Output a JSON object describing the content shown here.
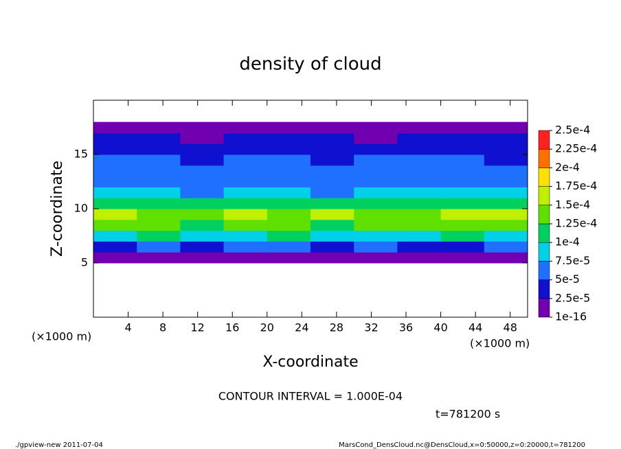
{
  "chart_data": {
    "type": "heatmap",
    "title": "density of cloud",
    "x_label": "X-coordinate",
    "y_label": "Z-coordinate",
    "x_unit": "(×1000 m)",
    "x_unit_right": "(×1000 m)",
    "contour_note": "CONTOUR INTERVAL = 1.000E-04",
    "time_note": "t=781200 s",
    "footer_left": "./gpview-new  2011-07-04",
    "footer_right": "MarsCond_DensCloud.nc@DensCloud,x=0:50000,z=0:20000,t=781200",
    "xlim": [
      0,
      50
    ],
    "ylim": [
      0,
      20
    ],
    "xticks": [
      4,
      8,
      12,
      16,
      20,
      24,
      28,
      32,
      36,
      40,
      44,
      48
    ],
    "yticks": [
      5,
      10,
      15
    ],
    "x_edges": [
      0,
      5,
      10,
      15,
      20,
      25,
      30,
      35,
      40,
      45,
      50
    ],
    "z_edges": [
      0,
      1,
      2,
      3,
      4,
      5,
      6,
      7,
      8,
      9,
      10,
      11,
      12,
      13,
      14,
      15,
      16,
      17,
      18,
      19,
      20
    ],
    "levels": [
      {
        "value": 1e-16,
        "label": "1e-16"
      },
      {
        "value": 2.5e-05,
        "label": "2.5e-5"
      },
      {
        "value": 5e-05,
        "label": "5e-5"
      },
      {
        "value": 7.5e-05,
        "label": "7.5e-5"
      },
      {
        "value": 0.0001,
        "label": "1e-4"
      },
      {
        "value": 0.000125,
        "label": "1.25e-4"
      },
      {
        "value": 0.00015,
        "label": "1.5e-4"
      },
      {
        "value": 0.000175,
        "label": "1.75e-4"
      },
      {
        "value": 0.0002,
        "label": "2e-4"
      },
      {
        "value": 0.000225,
        "label": "2.25e-4"
      },
      {
        "value": 0.00025,
        "label": "2.5e-4"
      }
    ],
    "colors": [
      "#7000b0",
      "#1010d0",
      "#2070ff",
      "#00d0e8",
      "#00d060",
      "#60e000",
      "#c0f000",
      "#ffe000",
      "#ff7000",
      "#ff2020"
    ],
    "values": [
      [
        null,
        null,
        null,
        null,
        null,
        null,
        null,
        null,
        null,
        null
      ],
      [
        null,
        null,
        null,
        null,
        null,
        null,
        null,
        null,
        null,
        null
      ],
      [
        null,
        null,
        null,
        null,
        null,
        null,
        null,
        null,
        null,
        null
      ],
      [
        null,
        null,
        null,
        null,
        null,
        null,
        null,
        null,
        null,
        null
      ],
      [
        null,
        null,
        null,
        null,
        null,
        null,
        null,
        null,
        null,
        null
      ],
      [
        1e-05,
        1e-05,
        2e-05,
        1e-05,
        1e-05,
        1e-05,
        2e-05,
        1e-05,
        1e-05,
        1e-05
      ],
      [
        4e-05,
        5e-05,
        3e-05,
        6e-05,
        5e-05,
        4e-05,
        6e-05,
        4e-05,
        3e-05,
        5e-05
      ],
      [
        9e-05,
        0.0001,
        8e-05,
        9e-05,
        0.0001,
        9e-05,
        8e-05,
        9e-05,
        0.0001,
        9e-05
      ],
      [
        0.00014,
        0.00013,
        0.00012,
        0.00014,
        0.00013,
        0.00012,
        0.00014,
        0.00013,
        0.00014,
        0.00013
      ],
      [
        0.00016,
        0.00014,
        0.00013,
        0.00015,
        0.00014,
        0.00015,
        0.00013,
        0.00014,
        0.00016,
        0.00015
      ],
      [
        0.00012,
        0.00011,
        0.0001,
        0.00012,
        0.00011,
        0.00011,
        0.0001,
        0.00011,
        0.00012,
        0.00011
      ],
      [
        8e-05,
        8e-05,
        7e-05,
        9e-05,
        8e-05,
        7e-05,
        8e-05,
        8e-05,
        9e-05,
        8e-05
      ],
      [
        6e-05,
        6e-05,
        5e-05,
        6e-05,
        6e-05,
        5e-05,
        6e-05,
        6e-05,
        6e-05,
        6e-05
      ],
      [
        6e-05,
        5e-05,
        5e-05,
        6e-05,
        5e-05,
        5e-05,
        5e-05,
        6e-05,
        5e-05,
        6e-05
      ],
      [
        5e-05,
        5e-05,
        4e-05,
        5e-05,
        5e-05,
        4e-05,
        5e-05,
        5e-05,
        5e-05,
        4e-05
      ],
      [
        4e-05,
        4e-05,
        4e-05,
        4e-05,
        3e-05,
        4e-05,
        4e-05,
        4e-05,
        4e-05,
        4e-05
      ],
      [
        3e-05,
        3e-05,
        2e-05,
        3e-05,
        3e-05,
        3e-05,
        2e-05,
        3e-05,
        3e-05,
        3e-05
      ],
      [
        1e-05,
        1e-05,
        1e-05,
        1e-05,
        1e-05,
        1e-05,
        1e-05,
        1e-05,
        1e-05,
        1e-05
      ],
      [
        null,
        null,
        null,
        null,
        null,
        null,
        null,
        null,
        null,
        null
      ],
      [
        null,
        null,
        null,
        null,
        null,
        null,
        null,
        null,
        null,
        null
      ]
    ]
  }
}
